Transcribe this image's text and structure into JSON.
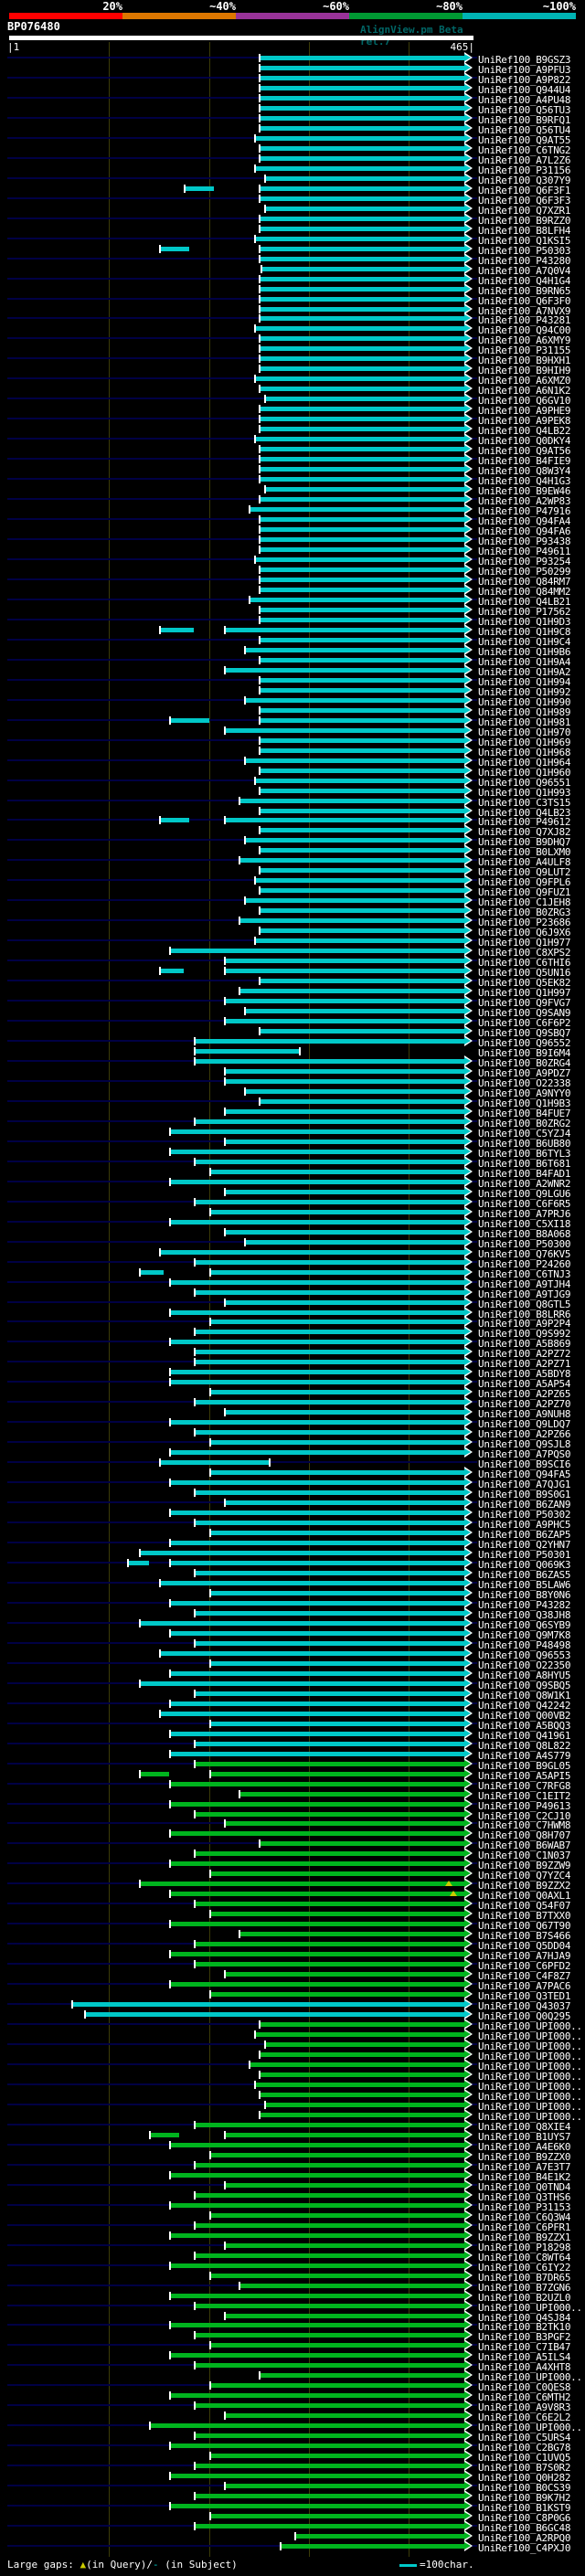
{
  "legend": {
    "large_gaps_label": "Large gaps: ",
    "query_gap_symbol": "▲",
    "query_gap_text": "(in Query)/",
    "subject_gap_symbol": "-",
    "subject_gap_text": " (in Subject)",
    "ruler_note": "=100char."
  },
  "colors": {
    "background": "#000000",
    "guide_line": "#000044",
    "gridline": "#3c3c08",
    "query_bar": "#ffffff",
    "gap_query_marker": "#cccc00"
  },
  "chart_data": {
    "type": "bar",
    "orientation": "horizontal",
    "title": "BP076480",
    "x_axis": {
      "min": 1,
      "max": 465,
      "unit": "characters",
      "gridline_interval": 100,
      "grid": true
    },
    "query": {
      "name": "BP076480",
      "start_label": "|1",
      "end_label": "465|",
      "length": 465,
      "watermark": "AlignView.pm Beta rel.7"
    },
    "identity_scale": {
      "position": "top",
      "segments": [
        {
          "label": "20%",
          "color": "#ff0000"
        },
        {
          "label": "~40%",
          "color": "#dd7700"
        },
        {
          "label": "~60%",
          "color": "#993399"
        },
        {
          "label": "~80%",
          "color": "#009933"
        },
        {
          "label": "~100%",
          "color": "#00b4b4"
        }
      ]
    },
    "hit_prefix": "UniRef100_",
    "bar_colors": {
      "c": "#00c8c8",
      "g": "#00b41e"
    },
    "rows_format": "[id_suffix, color_key, start_char, end_char(default 456), arrow(default 1), extra_segment[s,e], query_gap_pos]",
    "rows": [
      [
        "B9GSZ3",
        "c",
        250
      ],
      [
        "A9PFU3",
        "c",
        250
      ],
      [
        "A9P822",
        "c",
        250
      ],
      [
        "Q944U4",
        "c",
        250
      ],
      [
        "A4PU48",
        "c",
        250
      ],
      [
        "Q56TU3",
        "c",
        250
      ],
      [
        "B9RFQ1",
        "c",
        250
      ],
      [
        "Q56TU4",
        "c",
        250
      ],
      [
        "Q9AT55",
        "c",
        245
      ],
      [
        "C6TNG2",
        "c",
        250
      ],
      [
        "A7L2Z6",
        "c",
        250
      ],
      [
        "P31156",
        "c",
        245
      ],
      [
        "Q307Y9",
        "c",
        255
      ],
      [
        "Q6F3F1",
        "c",
        250,
        456,
        1,
        [
          175,
          205
        ]
      ],
      [
        "Q6F3F3",
        "c",
        250
      ],
      [
        "Q7XZR1",
        "c",
        255
      ],
      [
        "B9RZZ0",
        "c",
        250
      ],
      [
        "B8LFH4",
        "c",
        250
      ],
      [
        "Q1KSI5",
        "c",
        245
      ],
      [
        "P50303",
        "c",
        250,
        456,
        1,
        [
          150,
          180
        ]
      ],
      [
        "P43280",
        "c",
        250
      ],
      [
        "A7Q0V4",
        "c",
        252
      ],
      [
        "Q4H1G4",
        "c",
        250
      ],
      [
        "B9RN65",
        "c",
        250
      ],
      [
        "Q6F3F0",
        "c",
        250
      ],
      [
        "A7NVX9",
        "c",
        250
      ],
      [
        "P43281",
        "c",
        250
      ],
      [
        "Q94C00",
        "c",
        245
      ],
      [
        "A6XMY9",
        "c",
        250
      ],
      [
        "P31155",
        "c",
        250
      ],
      [
        "B9HXH1",
        "c",
        250
      ],
      [
        "B9HIH9",
        "c",
        250
      ],
      [
        "A6XMZ0",
        "c",
        245
      ],
      [
        "A6N1K2",
        "c",
        250
      ],
      [
        "Q6GV10",
        "c",
        255
      ],
      [
        "A9PHE9",
        "c",
        250
      ],
      [
        "A9PEK8",
        "c",
        250
      ],
      [
        "Q4LB22",
        "c",
        250
      ],
      [
        "Q0DKY4",
        "c",
        245
      ],
      [
        "Q9AT56",
        "c",
        250
      ],
      [
        "B4FIE9",
        "c",
        250
      ],
      [
        "Q8W3Y4",
        "c",
        250
      ],
      [
        "Q4H1G3",
        "c",
        250
      ],
      [
        "B9EW46",
        "c",
        255
      ],
      [
        "A2WP83",
        "c",
        250
      ],
      [
        "P47916",
        "c",
        240
      ],
      [
        "Q94FA4",
        "c",
        250
      ],
      [
        "Q94FA6",
        "c",
        250
      ],
      [
        "P93438",
        "c",
        250
      ],
      [
        "P49611",
        "c",
        250
      ],
      [
        "P93254",
        "c",
        245
      ],
      [
        "P50299",
        "c",
        250
      ],
      [
        "Q84RM7",
        "c",
        250
      ],
      [
        "Q84MM2",
        "c",
        250
      ],
      [
        "Q4LB21",
        "c",
        240
      ],
      [
        "P17562",
        "c",
        250
      ],
      [
        "Q1H9D3",
        "c",
        250
      ],
      [
        "Q1H9C8",
        "c",
        215,
        456,
        1,
        [
          150,
          185
        ]
      ],
      [
        "Q1H9C4",
        "c",
        250
      ],
      [
        "Q1H9B6",
        "c",
        235
      ],
      [
        "Q1H9A4",
        "c",
        250
      ],
      [
        "Q1H9A2",
        "c",
        215
      ],
      [
        "Q1H994",
        "c",
        250
      ],
      [
        "Q1H992",
        "c",
        250
      ],
      [
        "Q1H990",
        "c",
        235
      ],
      [
        "Q1H989",
        "c",
        250
      ],
      [
        "Q1H981",
        "c",
        250,
        456,
        1,
        [
          160,
          200
        ]
      ],
      [
        "Q1H970",
        "c",
        215
      ],
      [
        "Q1H969",
        "c",
        250
      ],
      [
        "Q1H968",
        "c",
        250
      ],
      [
        "Q1H964",
        "c",
        235
      ],
      [
        "Q1H960",
        "c",
        250
      ],
      [
        "Q96551",
        "c",
        245
      ],
      [
        "Q1H993",
        "c",
        250
      ],
      [
        "C3TS15",
        "c",
        230
      ],
      [
        "Q4LB23",
        "c",
        250
      ],
      [
        "P49612",
        "c",
        215,
        456,
        1,
        [
          150,
          180
        ]
      ],
      [
        "Q7XJ82",
        "c",
        250
      ],
      [
        "B9DHQ7",
        "c",
        235
      ],
      [
        "B0LXM0",
        "c",
        250
      ],
      [
        "A4ULF8",
        "c",
        230
      ],
      [
        "Q9LUT2",
        "c",
        250
      ],
      [
        "Q9FPL6",
        "c",
        245
      ],
      [
        "Q9FUZ1",
        "c",
        250
      ],
      [
        "C1JEH8",
        "c",
        235
      ],
      [
        "B0ZRG3",
        "c",
        250
      ],
      [
        "P23686",
        "c",
        230
      ],
      [
        "Q6J9X6",
        "c",
        250
      ],
      [
        "Q1H977",
        "c",
        245
      ],
      [
        "C8XPS2",
        "c",
        160
      ],
      [
        "C6THI6",
        "c",
        215
      ],
      [
        "Q5UN16",
        "c",
        215,
        456,
        1,
        [
          150,
          175
        ]
      ],
      [
        "Q5EK82",
        "c",
        250
      ],
      [
        "Q1H997",
        "c",
        230
      ],
      [
        "Q9FVG7",
        "c",
        215
      ],
      [
        "Q9SAN9",
        "c",
        235
      ],
      [
        "C6F6P2",
        "c",
        215
      ],
      [
        "Q9SBQ7",
        "c",
        250
      ],
      [
        "Q96552",
        "c",
        185
      ],
      [
        "B9I6M4",
        "c",
        185,
        290,
        0
      ],
      [
        "B0ZRG4",
        "c",
        185
      ],
      [
        "A9PDZ7",
        "c",
        215
      ],
      [
        "O22338",
        "c",
        215
      ],
      [
        "A9NYY0",
        "c",
        235
      ],
      [
        "Q1H9B3",
        "c",
        250
      ],
      [
        "B4FUE7",
        "c",
        215
      ],
      [
        "B0ZRG2",
        "c",
        185
      ],
      [
        "C5YZJ4",
        "c",
        160
      ],
      [
        "B6UB80",
        "c",
        215
      ],
      [
        "B6TYL3",
        "c",
        160
      ],
      [
        "B6T681",
        "c",
        185
      ],
      [
        "B4FAD1",
        "c",
        200
      ],
      [
        "A2WNR2",
        "c",
        160
      ],
      [
        "Q9LGU6",
        "c",
        215
      ],
      [
        "C6F6R5",
        "c",
        185
      ],
      [
        "A7PRJ6",
        "c",
        200
      ],
      [
        "C5XI18",
        "c",
        160
      ],
      [
        "B8A068",
        "c",
        215
      ],
      [
        "P50300",
        "c",
        235
      ],
      [
        "Q76KV5",
        "c",
        150
      ],
      [
        "P24260",
        "c",
        185
      ],
      [
        "C6TNJ3",
        "c",
        200,
        456,
        1,
        [
          130,
          155
        ]
      ],
      [
        "A9TJH4",
        "c",
        160
      ],
      [
        "A9TJG9",
        "c",
        185
      ],
      [
        "Q8GTL5",
        "c",
        215
      ],
      [
        "B8LRR6",
        "c",
        160
      ],
      [
        "A9P2P4",
        "c",
        200
      ],
      [
        "Q9S992",
        "c",
        185
      ],
      [
        "A5B869",
        "c",
        160
      ],
      [
        "A2PZ72",
        "c",
        185
      ],
      [
        "A2PZ71",
        "c",
        185
      ],
      [
        "A5BDY8",
        "c",
        160
      ],
      [
        "A5AP54",
        "c",
        160
      ],
      [
        "A2PZ65",
        "c",
        200
      ],
      [
        "A2PZ70",
        "c",
        185
      ],
      [
        "A9NUH8",
        "c",
        215
      ],
      [
        "Q9LDQ7",
        "c",
        160
      ],
      [
        "A2PZ66",
        "c",
        185
      ],
      [
        "Q9SJL8",
        "c",
        200
      ],
      [
        "A7PQS0",
        "c",
        160
      ],
      [
        "B9SCI6",
        "c",
        150,
        260,
        0
      ],
      [
        "Q94FA5",
        "c",
        200
      ],
      [
        "A7QJG1",
        "c",
        160
      ],
      [
        "B9S0G1",
        "c",
        185
      ],
      [
        "B6ZAN9",
        "c",
        215
      ],
      [
        "P50302",
        "c",
        160
      ],
      [
        "A9PHC5",
        "c",
        185
      ],
      [
        "B6ZAP5",
        "c",
        200
      ],
      [
        "Q2YHN7",
        "c",
        160
      ],
      [
        "P50301",
        "c",
        130
      ],
      [
        "Q069K3",
        "c",
        160,
        456,
        1,
        [
          118,
          140
        ]
      ],
      [
        "B6ZAS5",
        "c",
        185
      ],
      [
        "B5LAW6",
        "c",
        150
      ],
      [
        "B8Y0N6",
        "c",
        200
      ],
      [
        "P43282",
        "c",
        160
      ],
      [
        "Q38JH8",
        "c",
        185
      ],
      [
        "Q6SYB9",
        "c",
        130
      ],
      [
        "Q9M7K8",
        "c",
        160
      ],
      [
        "P48498",
        "c",
        185
      ],
      [
        "Q96553",
        "c",
        150
      ],
      [
        "O22350",
        "c",
        200
      ],
      [
        "A8HYU5",
        "c",
        160
      ],
      [
        "Q9SBQ5",
        "c",
        130
      ],
      [
        "Q8W1K1",
        "c",
        185
      ],
      [
        "Q42242",
        "c",
        160
      ],
      [
        "Q00VB2",
        "c",
        150
      ],
      [
        "A5BQQ3",
        "c",
        200
      ],
      [
        "Q41961",
        "c",
        160
      ],
      [
        "Q8L822",
        "c",
        185
      ],
      [
        "A4S779",
        "c",
        160
      ],
      [
        "B9GL05",
        "g",
        185
      ],
      [
        "A5API5",
        "g",
        200,
        456,
        1,
        [
          130,
          160
        ]
      ],
      [
        "C7RFG8",
        "g",
        160
      ],
      [
        "C1EIT2",
        "g",
        230
      ],
      [
        "P49613",
        "g",
        160
      ],
      [
        "C2CJ10",
        "g",
        185
      ],
      [
        "C7HWM8",
        "g",
        215
      ],
      [
        "Q8H707",
        "g",
        160
      ],
      [
        "B6WAB7",
        "g",
        250
      ],
      [
        "C1N037",
        "g",
        185
      ],
      [
        "B9ZZW9",
        "g",
        160
      ],
      [
        "Q7YZC4",
        "g",
        200
      ],
      [
        "B9ZZX2",
        "g",
        130,
        456,
        1,
        null,
        440
      ],
      [
        "Q0AXL1",
        "g",
        160,
        456,
        1,
        null,
        445
      ],
      [
        "Q54F07",
        "g",
        185
      ],
      [
        "B7TXX0",
        "g",
        200
      ],
      [
        "Q67T90",
        "g",
        160
      ],
      [
        "B7S466",
        "g",
        230
      ],
      [
        "Q5DD04",
        "g",
        185
      ],
      [
        "A7HJA9",
        "g",
        160
      ],
      [
        "C6PFD2",
        "g",
        185
      ],
      [
        "C4F8Z7",
        "g",
        215
      ],
      [
        "A7PAC6",
        "g",
        160
      ],
      [
        "Q3TED1",
        "g",
        200
      ],
      [
        "Q43037",
        "c",
        62
      ],
      [
        "Q0Q295",
        "c",
        75
      ],
      [
        "UPI000..",
        "g",
        250
      ],
      [
        "UPI000..",
        "g",
        245
      ],
      [
        "UPI000..",
        "g",
        255
      ],
      [
        "UPI000..",
        "g",
        250
      ],
      [
        "UPI000..",
        "g",
        240
      ],
      [
        "UPI000..",
        "g",
        250
      ],
      [
        "UPI000..",
        "g",
        245
      ],
      [
        "UPI000..",
        "g",
        250
      ],
      [
        "UPI000..",
        "g",
        255
      ],
      [
        "UPI000..",
        "g",
        250
      ],
      [
        "Q8XIE4",
        "g",
        185
      ],
      [
        "B1UYS7",
        "g",
        215,
        456,
        1,
        [
          140,
          170
        ]
      ],
      [
        "A4E6K0",
        "g",
        160
      ],
      [
        "B9ZZX0",
        "g",
        200
      ],
      [
        "A7E3T7",
        "g",
        185
      ],
      [
        "B4E1K2",
        "g",
        160
      ],
      [
        "Q0TND4",
        "g",
        215
      ],
      [
        "Q3THS6",
        "g",
        185
      ],
      [
        "P31153",
        "g",
        160
      ],
      [
        "C6Q3W4",
        "g",
        200
      ],
      [
        "C6PFR1",
        "g",
        185
      ],
      [
        "B9ZZX1",
        "g",
        160
      ],
      [
        "P18298",
        "g",
        215
      ],
      [
        "C8WT64",
        "g",
        185
      ],
      [
        "C6IY22",
        "g",
        160
      ],
      [
        "B7DR65",
        "g",
        200
      ],
      [
        "B7ZGN6",
        "g",
        230
      ],
      [
        "B2UZL0",
        "g",
        160
      ],
      [
        "UPI000..",
        "g",
        185
      ],
      [
        "Q4SJ84",
        "g",
        215
      ],
      [
        "B2TK10",
        "g",
        160
      ],
      [
        "B3PGF2",
        "g",
        185
      ],
      [
        "C7IB47",
        "g",
        200
      ],
      [
        "A5ILS4",
        "g",
        160
      ],
      [
        "A4XHT8",
        "g",
        185
      ],
      [
        "UPI000..",
        "g",
        250
      ],
      [
        "C0QES8",
        "g",
        200
      ],
      [
        "C6MTH2",
        "g",
        160
      ],
      [
        "A9V8R3",
        "g",
        185
      ],
      [
        "C6E2L2",
        "g",
        215
      ],
      [
        "UPI000..",
        "g",
        140
      ],
      [
        "C5URS4",
        "g",
        185
      ],
      [
        "C2BG78",
        "g",
        160
      ],
      [
        "C1UVQ5",
        "g",
        200
      ],
      [
        "B7S0R2",
        "g",
        185
      ],
      [
        "Q0H282",
        "g",
        160
      ],
      [
        "B0CS39",
        "g",
        215
      ],
      [
        "B9K7H2",
        "g",
        185
      ],
      [
        "B1KST9",
        "g",
        160
      ],
      [
        "C8P0G6",
        "g",
        200
      ],
      [
        "B6GC48",
        "g",
        185
      ],
      [
        "A2RPQ0",
        "g",
        286
      ],
      [
        "C4PXJ0",
        "g",
        271
      ]
    ]
  }
}
